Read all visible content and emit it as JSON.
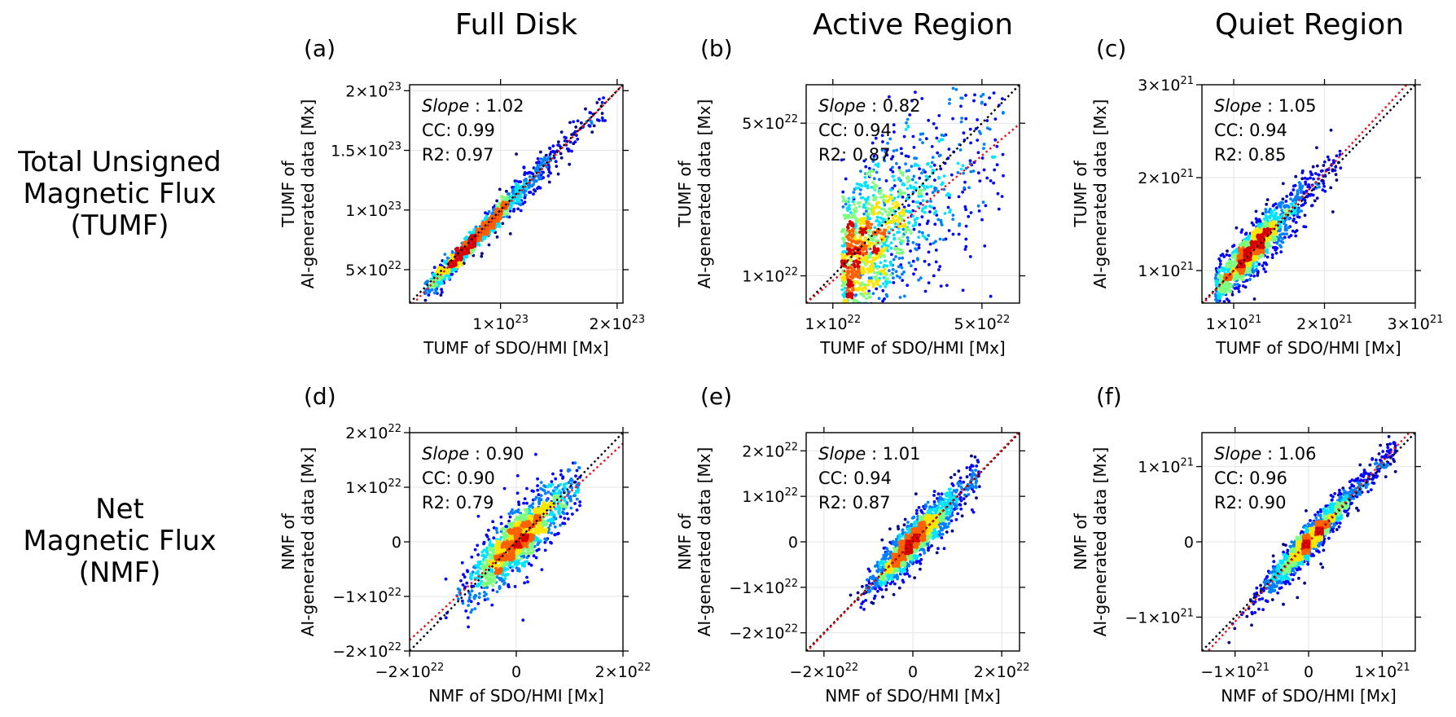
{
  "figure": {
    "column_titles": [
      "Full Disk",
      "Active Region",
      "Quiet Region"
    ],
    "row_titles": [
      [
        "Total Unsigned",
        "Magnetic Flux",
        "(TUMF)"
      ],
      [
        "Net",
        "Magnetic Flux",
        "(NMF)"
      ]
    ]
  },
  "colors": {
    "identity_line": "#000000",
    "fit_line": "#e8141c",
    "density_colormap": [
      "#00008b",
      "#0000ff",
      "#0080ff",
      "#00e5ff",
      "#7fff7f",
      "#ffe600",
      "#ff6000",
      "#d60000"
    ]
  },
  "chart_data": [
    {
      "type": "scatter",
      "label": "(a)",
      "xlabel": "TUMF of SDO/HMI [Mx]",
      "ylabel": [
        "TUMF of",
        "AI-generated data [Mx]"
      ],
      "xlim": [
        2.2e+22,
        2.05e+23
      ],
      "ylim": [
        2.2e+22,
        2.05e+23
      ],
      "scale": "linear",
      "xticks": [
        {
          "v": 1e+23,
          "m": "1×10",
          "e": "23"
        },
        {
          "v": 2e+23,
          "m": "2×10",
          "e": "23"
        }
      ],
      "yticks": [
        {
          "v": 5e+22,
          "m": "5×10",
          "e": "22"
        },
        {
          "v": 1e+23,
          "m": "1×10",
          "e": "23"
        },
        {
          "v": 1.5e+23,
          "m": "1.5×10",
          "e": "23"
        },
        {
          "v": 2e+23,
          "m": "2×10",
          "e": "23"
        }
      ],
      "slope_value": "1.02",
      "cc": "CC: 0.99",
      "r2": "R2: 0.97",
      "fit_slope": 1.02,
      "fit_intercept": -4e+21,
      "cloud": {
        "x_mean": 7.5e+22,
        "x_sd": 3e+22,
        "x_min": 3.5e+22,
        "x_max": 1.9e+23,
        "noise_sd": 4e+21,
        "noise_grow": 0.04,
        "outlier_frac": 0.03,
        "n": 1500
      }
    },
    {
      "type": "scatter",
      "label": "(b)",
      "xlabel": "TUMF of SDO/HMI [Mx]",
      "ylabel": [
        "TUMF of",
        "AI-generated data [Mx]"
      ],
      "xlim": [
        7.5e+21,
        7.5e+22
      ],
      "ylim": [
        7.5e+21,
        7.5e+22
      ],
      "scale": "log",
      "xticks": [
        {
          "v": 1e+22,
          "m": "1×10",
          "e": "22"
        },
        {
          "v": 5e+22,
          "m": "5×10",
          "e": "22"
        }
      ],
      "yticks": [
        {
          "v": 1e+22,
          "m": "1×10",
          "e": "22"
        },
        {
          "v": 5e+22,
          "m": "5×10",
          "e": "22"
        }
      ],
      "slope_value": "0.82",
      "cc": "CC: 0.94",
      "r2": "R2: 0.87",
      "fit_slope": 0.82,
      "fit_intercept": 0.0,
      "cloud": {
        "x_mean": 1.1e+22,
        "x_sd": 0.45,
        "x_min": 8e+21,
        "x_max": 6.5e+22,
        "noise_sd": 0.14,
        "noise_grow": 0.0,
        "outlier_frac": 0.05,
        "n": 1500
      }
    },
    {
      "type": "scatter",
      "label": "(c)",
      "xlabel": "TUMF of SDO/HMI [Mx]",
      "ylabel": [
        "TUMF of",
        "AI-generated data [Mx]"
      ],
      "xlim": [
        6.5e+20,
        3e+21
      ],
      "ylim": [
        6.5e+20,
        3e+21
      ],
      "scale": "linear",
      "xticks": [
        {
          "v": 1e+21,
          "m": "1×10",
          "e": "21"
        },
        {
          "v": 2e+21,
          "m": "2×10",
          "e": "21"
        },
        {
          "v": 3e+21,
          "m": "3×10",
          "e": "21"
        }
      ],
      "yticks": [
        {
          "v": 1e+21,
          "m": "1×10",
          "e": "21"
        },
        {
          "v": 2e+21,
          "m": "2×10",
          "e": "21"
        },
        {
          "v": 3e+21,
          "m": "3×10",
          "e": "21"
        }
      ],
      "slope_value": "1.05",
      "cc": "CC: 0.94",
      "r2": "R2: 0.85",
      "fit_slope": 1.05,
      "fit_intercept": -5e+19,
      "cloud": {
        "x_mean": 1.15e+21,
        "x_sd": 2.6e+20,
        "x_min": 8e+20,
        "x_max": 2.85e+21,
        "noise_sd": 1.1e+20,
        "noise_grow": 0.03,
        "outlier_frac": 0.03,
        "n": 1500
      }
    },
    {
      "type": "scatter",
      "label": "(d)",
      "xlabel": "NMF of SDO/HMI [Mx]",
      "ylabel": [
        "NMF of",
        "AI-generated data [Mx]"
      ],
      "xlim": [
        -2e+22,
        2e+22
      ],
      "ylim": [
        -2e+22,
        2e+22
      ],
      "scale": "linear",
      "xticks": [
        {
          "v": -2e+22,
          "m": "−2×10",
          "e": "22"
        },
        {
          "v": 0,
          "m": "0",
          "e": ""
        },
        {
          "v": 2e+22,
          "m": "2×10",
          "e": "22"
        }
      ],
      "yticks": [
        {
          "v": -2e+22,
          "m": "−2×10",
          "e": "22"
        },
        {
          "v": -1e+22,
          "m": "−1×10",
          "e": "22"
        },
        {
          "v": 0,
          "m": "0",
          "e": ""
        },
        {
          "v": 1e+22,
          "m": "1×10",
          "e": "22"
        },
        {
          "v": 2e+22,
          "m": "2×10",
          "e": "22"
        }
      ],
      "slope_value": "0.90",
      "cc": "CC: 0.90",
      "r2": "R2: 0.79",
      "fit_slope": 0.9,
      "fit_intercept": 0.0,
      "cloud": {
        "x_mean": 0.0,
        "x_sd": 4.5e+21,
        "x_min": -1.45e+22,
        "x_max": 1.2e+22,
        "noise_sd": 2.6e+21,
        "noise_grow": 0.0,
        "outlier_frac": 0.03,
        "n": 1500
      }
    },
    {
      "type": "scatter",
      "label": "(e)",
      "xlabel": "NMF of SDO/HMI [Mx]",
      "ylabel": [
        "NMF of",
        "AI-generated data [Mx]"
      ],
      "xlim": [
        -2.4e+22,
        2.4e+22
      ],
      "ylim": [
        -2.4e+22,
        2.4e+22
      ],
      "scale": "linear",
      "xticks": [
        {
          "v": -2e+22,
          "m": "−2×10",
          "e": "22"
        },
        {
          "v": 0,
          "m": "0",
          "e": ""
        },
        {
          "v": 2e+22,
          "m": "2×10",
          "e": "22"
        }
      ],
      "yticks": [
        {
          "v": -2e+22,
          "m": "−2×10",
          "e": "22"
        },
        {
          "v": -1e+22,
          "m": "−1×10",
          "e": "22"
        },
        {
          "v": 0,
          "m": "0",
          "e": ""
        },
        {
          "v": 1e+22,
          "m": "1×10",
          "e": "22"
        },
        {
          "v": 2e+22,
          "m": "2×10",
          "e": "22"
        }
      ],
      "slope_value": "1.01",
      "cc": "CC: 0.94",
      "r2": "R2: 0.87",
      "fit_slope": 1.01,
      "fit_intercept": 0.0,
      "cloud": {
        "x_mean": 0.0,
        "x_sd": 4.5e+21,
        "x_min": -1.5e+22,
        "x_max": 1.5e+22,
        "noise_sd": 2.2e+21,
        "noise_grow": 0.0,
        "outlier_frac": 0.03,
        "n": 1500
      }
    },
    {
      "type": "scatter",
      "label": "(f)",
      "xlabel": "NMF of SDO/HMI [Mx]",
      "ylabel": [
        "NMF of",
        "AI-generated data [Mx]"
      ],
      "xlim": [
        -1.45e+21,
        1.45e+21
      ],
      "ylim": [
        -1.45e+21,
        1.45e+21
      ],
      "scale": "linear",
      "xticks": [
        {
          "v": -1e+21,
          "m": "−1×10",
          "e": "21"
        },
        {
          "v": 0,
          "m": "0",
          "e": ""
        },
        {
          "v": 1e+21,
          "m": "1×10",
          "e": "21"
        }
      ],
      "yticks": [
        {
          "v": -1e+21,
          "m": "−1×10",
          "e": "21"
        },
        {
          "v": 0,
          "m": "0",
          "e": ""
        },
        {
          "v": 1e+21,
          "m": "1×10",
          "e": "21"
        }
      ],
      "slope_value": "1.06",
      "cc": "CC: 0.96",
      "r2": "R2: 0.90",
      "fit_slope": 1.06,
      "fit_intercept": 0.0,
      "cloud": {
        "x_mean": 0.0,
        "x_sd": 3e+20,
        "x_min": -1.4e+21,
        "x_max": 1.4e+21,
        "noise_sd": 1e+20,
        "noise_grow": 0.0,
        "outlier_frac": 0.03,
        "n": 1500
      }
    }
  ]
}
